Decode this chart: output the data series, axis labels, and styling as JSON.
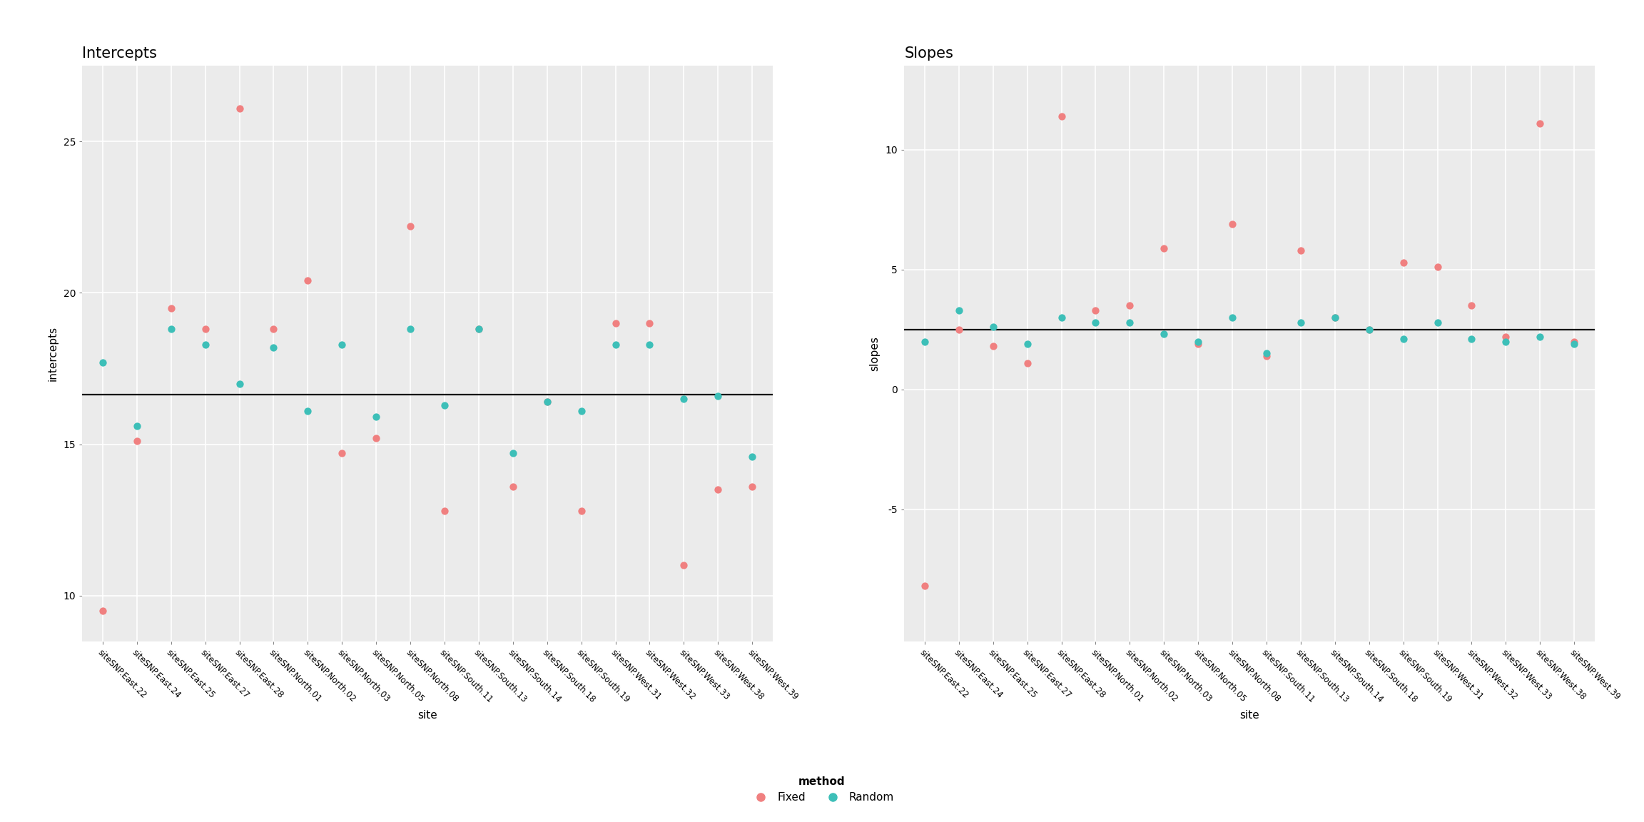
{
  "sites": [
    "siteSNP.East.22",
    "siteSNP.East.24",
    "siteSNP.East.25",
    "siteSNP.East.27",
    "siteSNP.East.28",
    "siteSNP.North.01",
    "siteSNP.North.02",
    "siteSNP.North.03",
    "siteSNP.North.05",
    "siteSNP.North.08",
    "siteSNP.South.11",
    "siteSNP.South.13",
    "siteSNP.South.14",
    "siteSNP.South.18",
    "siteSNP.South.19",
    "siteSNP.West.31",
    "siteSNP.West.32",
    "siteSNP.West.33",
    "siteSNP.West.38",
    "siteSNP.West.39"
  ],
  "intercepts_fixed": [
    9.5,
    15.1,
    19.5,
    18.8,
    26.1,
    18.8,
    20.4,
    14.7,
    15.2,
    22.2,
    12.8,
    18.8,
    13.6,
    16.4,
    12.8,
    19.0,
    19.0,
    11.0,
    13.5,
    13.6
  ],
  "intercepts_random": [
    17.7,
    15.6,
    18.8,
    18.3,
    17.0,
    18.2,
    16.1,
    18.3,
    15.9,
    18.8,
    16.3,
    18.8,
    14.7,
    16.4,
    16.1,
    18.3,
    18.3,
    16.5,
    16.6,
    14.6
  ],
  "slopes_fixed": [
    -8.2,
    2.5,
    1.8,
    1.1,
    11.4,
    3.3,
    3.5,
    5.9,
    1.9,
    6.9,
    1.4,
    5.8,
    3.0,
    2.5,
    5.3,
    5.1,
    3.5,
    2.2,
    11.1,
    2.0
  ],
  "slopes_random": [
    2.0,
    3.3,
    2.6,
    1.9,
    3.0,
    2.8,
    2.8,
    2.3,
    2.0,
    3.0,
    1.5,
    2.8,
    3.0,
    2.5,
    2.1,
    2.8,
    2.1,
    2.0,
    2.2,
    1.9
  ],
  "intercept_hline": 16.65,
  "slope_hline": 2.5,
  "color_fixed": "#F08080",
  "color_random": "#3DBFB8",
  "bg_color": "#EBEBEB",
  "grid_color": "#FFFFFF",
  "title_left": "Intercepts",
  "title_right": "Slopes",
  "ylabel_left": "intercepts",
  "ylabel_right": "slopes",
  "xlabel": "site",
  "ylim_intercepts": [
    8.5,
    27.5
  ],
  "ylim_slopes": [
    -10.5,
    13.5
  ],
  "yticks_intercepts": [
    10,
    15,
    20,
    25
  ],
  "yticks_slopes": [
    -5,
    0,
    5,
    10
  ]
}
